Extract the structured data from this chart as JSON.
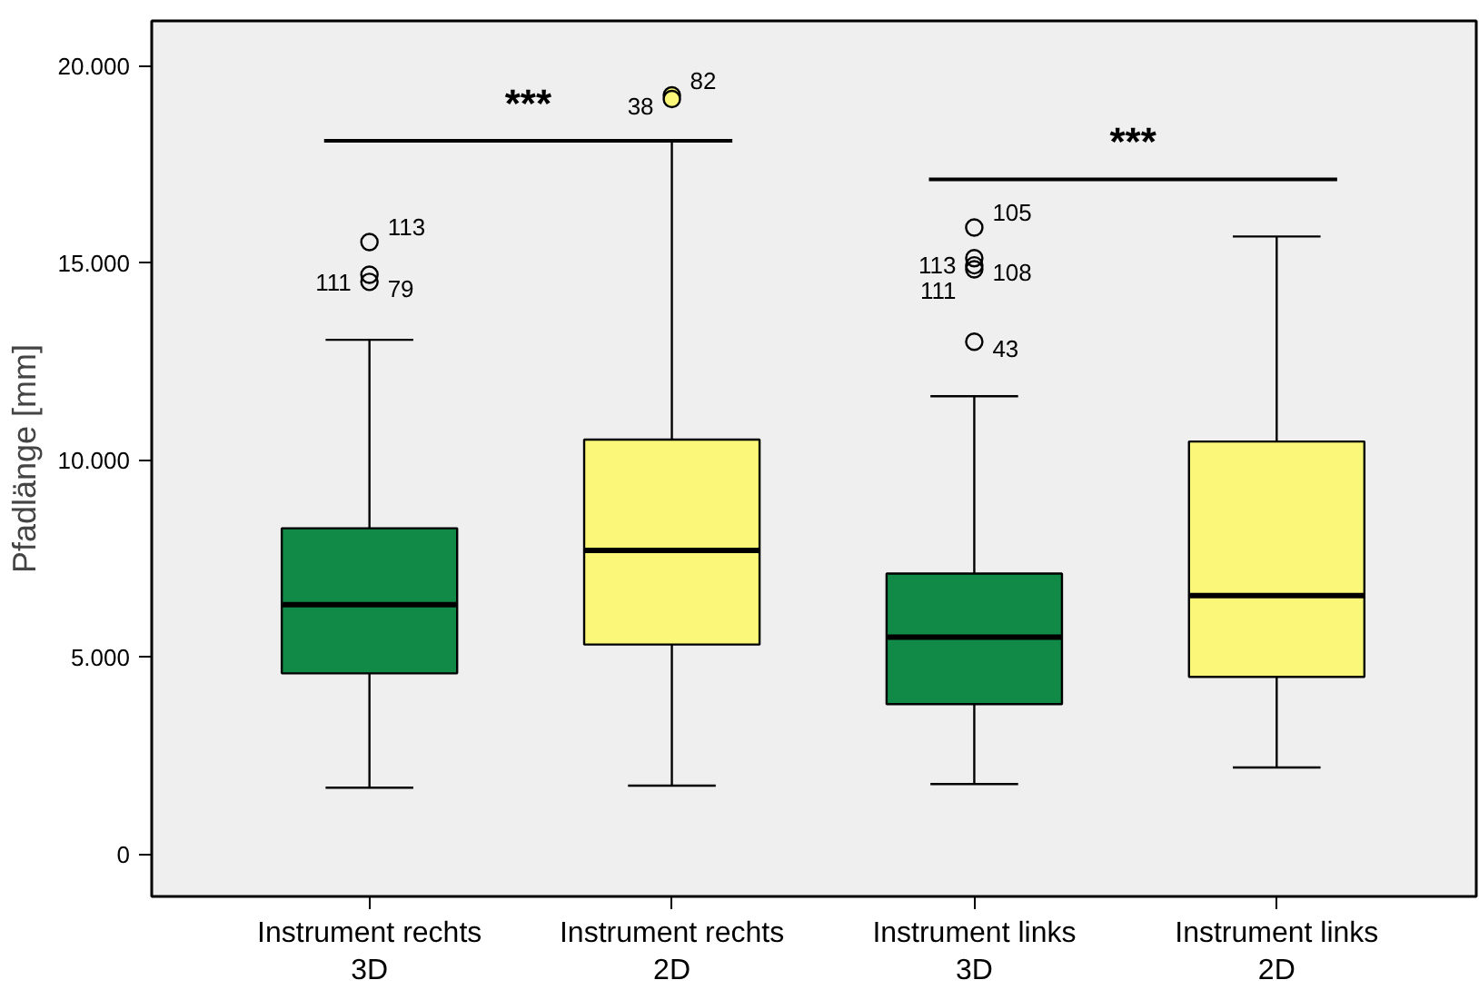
{
  "chart_data": {
    "type": "box",
    "ylabel": "Pfadlänge [mm]",
    "categories": [
      "Instrument rechts\n3D",
      "Instrument rechts\n2D",
      "Instrument links\n3D",
      "Instrument links\n2D"
    ],
    "colors": [
      "#118a47",
      "#fbf778",
      "#118a47",
      "#fbf778"
    ],
    "boxes": [
      {
        "low": 1700,
        "q1": 4600,
        "median": 6340,
        "q3": 8280,
        "high": 13060,
        "outliers": [
          15540,
          14710,
          14530
        ]
      },
      {
        "low": 1750,
        "q1": 5330,
        "median": 7720,
        "q3": 10530,
        "high": 18110,
        "outliers": [
          19260,
          19170
        ]
      },
      {
        "low": 1790,
        "q1": 3820,
        "median": 5520,
        "q3": 7130,
        "high": 11630,
        "outliers": [
          15910,
          15130,
          14950,
          14850,
          13010
        ]
      },
      {
        "low": 2210,
        "q1": 4510,
        "median": 6570,
        "q3": 10480,
        "high": 15680
      }
    ],
    "ylim": [
      -1060,
      21150
    ],
    "yticks": [
      {
        "value": 0,
        "label": "0"
      },
      {
        "value": 5000,
        "label": "5.000"
      },
      {
        "value": 10000,
        "label": "10.000"
      },
      {
        "value": 15000,
        "label": "15.000"
      },
      {
        "value": 20000,
        "label": "20.000"
      }
    ],
    "grid": false,
    "annotations": [
      "113",
      "111",
      "79",
      "82",
      "38",
      "105",
      "113",
      "108",
      "111",
      "43",
      "***",
      "***"
    ]
  }
}
